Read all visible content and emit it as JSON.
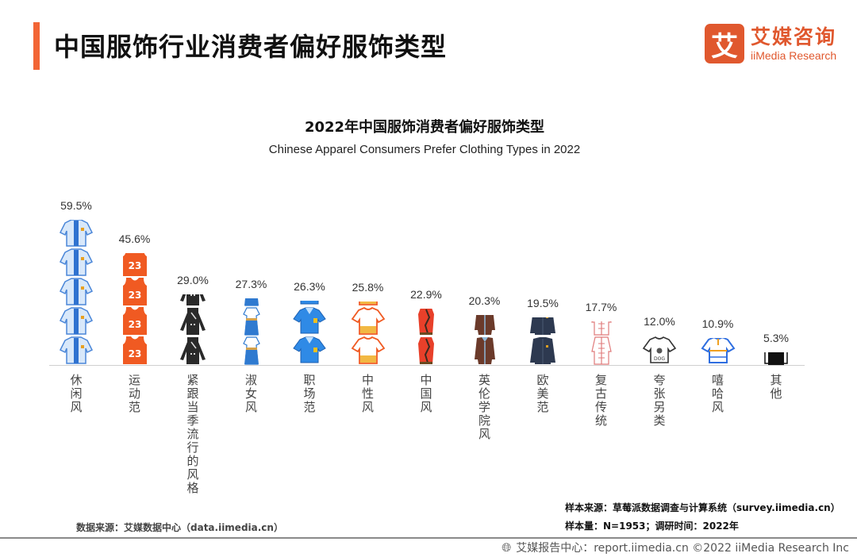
{
  "header": {
    "title": "中国服饰行业消费者偏好服饰类型",
    "accent_color": "#f26535"
  },
  "logo": {
    "mark": "艾",
    "name_cn": "艾媒咨询",
    "name_en": "iiMedia Research",
    "color": "#e0582e"
  },
  "chart_data": {
    "type": "bar",
    "style": "pictograph",
    "title": "2022年中国服饰消费者偏好服饰类型",
    "subtitle": "Chinese Apparel Consumers Prefer Clothing Types in 2022",
    "xlabel": "",
    "ylabel": "",
    "unit": "%",
    "grid": false,
    "legend": null,
    "categories": [
      "休闲风",
      "运动范",
      "紧跟当季流行的风格",
      "淑女风",
      "职场范",
      "中性风",
      "中国风",
      "英伦学院风",
      "欧美范",
      "复古传统",
      "夸张另类",
      "嘻哈风",
      "其他"
    ],
    "values": [
      59.5,
      45.6,
      29.0,
      27.3,
      26.3,
      25.8,
      22.9,
      20.3,
      19.5,
      17.7,
      12.0,
      10.9,
      5.3
    ],
    "labels": [
      "59.5%",
      "45.6%",
      "29.0%",
      "27.3%",
      "26.3%",
      "25.8%",
      "22.9%",
      "20.3%",
      "19.5%",
      "17.7%",
      "12.0%",
      "10.9%",
      "5.3%"
    ],
    "icons": [
      "casual-shirt-icon",
      "basketball-jersey-icon",
      "black-suit-icon",
      "lady-dress-icon",
      "polo-shirt-icon",
      "tshirt-icon",
      "qipao-icon",
      "trench-coat-icon",
      "denim-jacket-icon",
      "tang-suit-icon",
      "graphic-sweater-icon",
      "hiphop-tee-icon",
      "other-garment-icon"
    ]
  },
  "sources": {
    "left": "数据来源：艾媒数据中心（data.iimedia.cn）",
    "sample_source": "样本来源：草莓派数据调查与计算系统（survey.iimedia.cn）",
    "sample_size": "样本量：N=1953；调研时间：2022年"
  },
  "footer": {
    "text": "艾媒报告中心：report.iimedia.cn   ©2022  iiMedia Research  Inc",
    "icon": "globe-icon"
  }
}
